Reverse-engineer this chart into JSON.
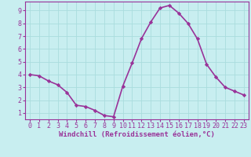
{
  "x": [
    0,
    1,
    2,
    3,
    4,
    5,
    6,
    7,
    8,
    9,
    10,
    11,
    12,
    13,
    14,
    15,
    16,
    17,
    18,
    19,
    20,
    21,
    22,
    23
  ],
  "y": [
    4.0,
    3.9,
    3.5,
    3.2,
    2.6,
    1.6,
    1.5,
    1.2,
    0.8,
    0.7,
    3.1,
    4.9,
    6.8,
    8.1,
    9.2,
    9.4,
    8.8,
    8.0,
    6.8,
    4.8,
    3.8,
    3.0,
    2.7,
    2.4
  ],
  "line_color": "#993399",
  "marker": "D",
  "marker_size": 2.2,
  "bg_color": "#c8eef0",
  "grid_color": "#aadddd",
  "xlabel": "Windchill (Refroidissement éolien,°C)",
  "xlabel_color": "#993399",
  "tick_color": "#993399",
  "spine_color": "#993399",
  "xlim": [
    -0.5,
    23.5
  ],
  "ylim": [
    0.5,
    9.7
  ],
  "yticks": [
    1,
    2,
    3,
    4,
    5,
    6,
    7,
    8,
    9
  ],
  "xticks": [
    0,
    1,
    2,
    3,
    4,
    5,
    6,
    7,
    8,
    9,
    10,
    11,
    12,
    13,
    14,
    15,
    16,
    17,
    18,
    19,
    20,
    21,
    22,
    23
  ],
  "linewidth": 1.2,
  "tick_fontsize": 6.0,
  "xlabel_fontsize": 6.5
}
